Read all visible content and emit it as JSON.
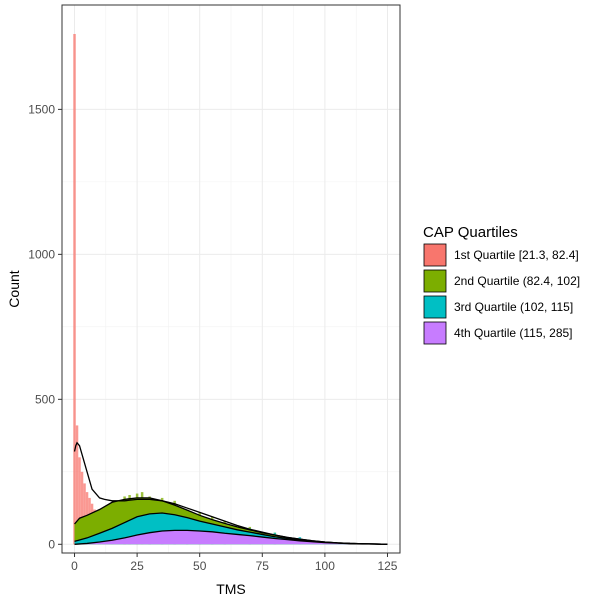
{
  "chart_data": {
    "type": "bar",
    "xlabel": "TMS",
    "ylabel": "Count",
    "xlim": [
      -5,
      130
    ],
    "ylim": [
      -30,
      1860
    ],
    "x_ticks": [
      0,
      25,
      50,
      75,
      100,
      125
    ],
    "y_ticks": [
      0,
      500,
      1000,
      1500
    ],
    "grid": true,
    "legend": {
      "title": "CAP Quartiles",
      "placement": "right",
      "entries": [
        {
          "label": "1st Quartile [21.3, 82.4]",
          "color": "#F8766D"
        },
        {
          "label": "2nd Quartile (82.4, 102]",
          "color": "#7CAE00"
        },
        {
          "label": "3rd Quartile (102, 115]",
          "color": "#00BFC4"
        },
        {
          "label": "4th Quartile (115, 285]",
          "color": "#C77CFF"
        }
      ]
    },
    "histogram": {
      "bin_width": 1,
      "series": [
        {
          "name": "1st Quartile [21.3, 82.4]",
          "color": "#F8766D",
          "x": [
            0,
            1,
            2,
            3,
            4,
            5,
            6,
            7,
            8,
            10,
            12,
            15,
            20,
            25,
            30
          ],
          "values": [
            1760,
            410,
            300,
            250,
            210,
            180,
            160,
            140,
            120,
            110,
            115,
            110,
            150,
            160,
            150
          ]
        },
        {
          "name": "2nd Quartile (82.4, 102]",
          "color": "#7CAE00",
          "x": [
            20,
            22,
            25,
            27,
            30,
            35,
            40,
            45,
            50,
            55,
            60,
            70,
            80
          ],
          "values": [
            165,
            170,
            175,
            180,
            165,
            160,
            150,
            120,
            110,
            95,
            80,
            60,
            40
          ]
        },
        {
          "name": "3rd Quartile (102, 115]",
          "color": "#00BFC4",
          "x": [
            30,
            35,
            40,
            45,
            50,
            55,
            60,
            70,
            80,
            90
          ],
          "values": [
            105,
            110,
            105,
            100,
            90,
            80,
            70,
            55,
            40,
            25
          ]
        },
        {
          "name": "4th Quartile (115, 285]",
          "color": "#C77CFF",
          "x": [
            30,
            35,
            40,
            50,
            60,
            70,
            80,
            90,
            100,
            110
          ],
          "values": [
            50,
            55,
            55,
            50,
            45,
            35,
            25,
            18,
            10,
            5
          ]
        }
      ]
    },
    "density_curves": [
      {
        "name": "1st Quartile [21.3, 82.4]",
        "x": [
          0,
          0.5,
          1,
          2,
          3,
          5,
          7,
          10,
          12,
          15,
          20,
          25,
          30,
          35,
          40,
          45,
          50,
          55,
          60,
          65,
          70,
          75,
          80,
          85,
          90,
          95,
          100,
          105,
          110,
          115,
          120,
          125
        ],
        "y": [
          320,
          340,
          350,
          340,
          310,
          250,
          190,
          160,
          155,
          150,
          150,
          155,
          155,
          150,
          140,
          125,
          110,
          95,
          80,
          65,
          52,
          42,
          32,
          24,
          18,
          12,
          8,
          5,
          3,
          2,
          1,
          0
        ]
      },
      {
        "name": "2nd Quartile (82.4, 102]",
        "x": [
          0,
          2,
          5,
          10,
          15,
          20,
          25,
          30,
          35,
          40,
          45,
          50,
          55,
          60,
          65,
          70,
          75,
          80,
          85,
          90,
          95,
          100,
          105,
          110,
          115,
          120,
          125
        ],
        "y": [
          70,
          90,
          100,
          120,
          145,
          155,
          160,
          160,
          150,
          135,
          118,
          100,
          85,
          72,
          60,
          50,
          40,
          32,
          24,
          18,
          12,
          8,
          5,
          3,
          2,
          1,
          0
        ]
      },
      {
        "name": "3rd Quartile (102, 115]",
        "x": [
          0,
          5,
          10,
          15,
          20,
          25,
          30,
          35,
          40,
          45,
          50,
          55,
          60,
          65,
          70,
          75,
          80,
          85,
          90,
          95,
          100,
          105,
          110,
          115,
          120,
          125
        ],
        "y": [
          10,
          22,
          38,
          55,
          75,
          95,
          105,
          108,
          102,
          92,
          80,
          70,
          60,
          50,
          42,
          34,
          26,
          20,
          15,
          10,
          7,
          5,
          3,
          2,
          1,
          0
        ]
      },
      {
        "name": "4th Quartile (115, 285]",
        "x": [
          0,
          5,
          10,
          15,
          20,
          25,
          30,
          35,
          40,
          45,
          50,
          55,
          60,
          65,
          70,
          75,
          80,
          85,
          90,
          95,
          100,
          105,
          110,
          115,
          120,
          125
        ],
        "y": [
          0,
          3,
          8,
          14,
          22,
          32,
          40,
          46,
          48,
          48,
          46,
          43,
          38,
          34,
          30,
          25,
          20,
          16,
          12,
          9,
          6,
          4,
          2,
          1,
          1,
          0
        ]
      }
    ]
  }
}
